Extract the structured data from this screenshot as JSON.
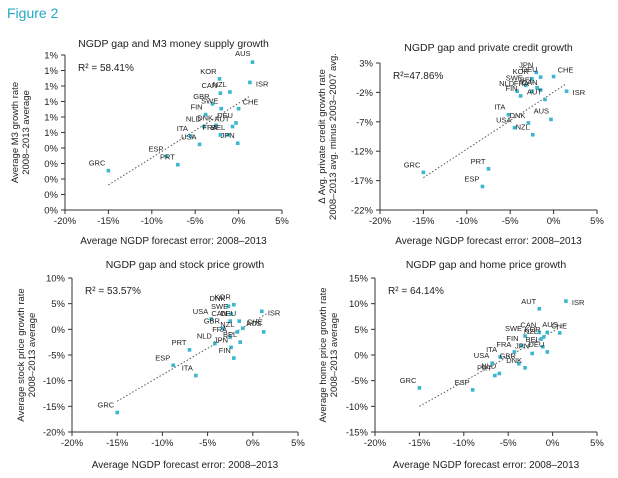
{
  "figure_label": "Figure 2",
  "colors": {
    "point": "#3ab7cf",
    "trend": "#555555",
    "axis": "#333333",
    "label": "#222222"
  },
  "chart_data": [
    {
      "type": "scatter",
      "title": "NGDP gap and M3 money supply growth",
      "xlabel": "Average NGDP forecast error: 2008–2013",
      "ylabel": [
        "Average M3 growth rate",
        "2008–2013 average"
      ],
      "annotation": "R² = 58.41%",
      "xlim": [
        -20,
        5
      ],
      "ylim": [
        0,
        1.3
      ],
      "x_ticks": [
        -20,
        -15,
        -10,
        -5,
        0,
        5
      ],
      "x_tick_labels": [
        "-20%",
        "-15%",
        "-10%",
        "-5%",
        "0%",
        "5%"
      ],
      "y_ticks": [
        0,
        0.13,
        0.26,
        0.39,
        0.52,
        0.65,
        0.78,
        0.91,
        1.04,
        1.17,
        1.3
      ],
      "y_tick_labels": [
        "0%",
        "0%",
        "0%",
        "0%",
        "0%",
        "1%",
        "1%",
        "1%",
        "1%",
        "1%",
        "1%"
      ],
      "trend": [
        [
          -15,
          0.21
        ],
        [
          1.4,
          0.96
        ]
      ],
      "points": [
        {
          "label": "GRC",
          "x": -15.0,
          "y": 0.33
        },
        {
          "label": "ESP",
          "x": -8.3,
          "y": 0.45
        },
        {
          "label": "PRT",
          "x": -7.0,
          "y": 0.38
        },
        {
          "label": "ITA",
          "x": -5.5,
          "y": 0.62
        },
        {
          "label": "USA",
          "x": -4.5,
          "y": 0.55
        },
        {
          "label": "NLD",
          "x": -4.0,
          "y": 0.7
        },
        {
          "label": "FIN",
          "x": -3.8,
          "y": 0.8
        },
        {
          "label": "GBR",
          "x": -3.0,
          "y": 0.89
        },
        {
          "label": "SWE",
          "x": -2.0,
          "y": 0.85
        },
        {
          "label": "DNK",
          "x": -2.6,
          "y": 0.71
        },
        {
          "label": "FRA",
          "x": -2.1,
          "y": 0.63
        },
        {
          "label": "BEL",
          "x": -1.2,
          "y": 0.63
        },
        {
          "label": "AUT",
          "x": -0.7,
          "y": 0.7
        },
        {
          "label": "DEU",
          "x": -0.3,
          "y": 0.73
        },
        {
          "label": "CHE",
          "x": 0.0,
          "y": 0.85
        },
        {
          "label": "JPN",
          "x": -0.1,
          "y": 0.56
        },
        {
          "label": "CAN",
          "x": -2.1,
          "y": 0.98
        },
        {
          "label": "NZL",
          "x": -1.0,
          "y": 0.99
        },
        {
          "label": "KOR",
          "x": -2.2,
          "y": 1.1
        },
        {
          "label": "ISR",
          "x": 1.3,
          "y": 1.07
        },
        {
          "label": "AUS",
          "x": 1.6,
          "y": 1.24
        }
      ]
    },
    {
      "type": "scatter",
      "title": "NGDP gap and private credit growth",
      "xlabel": "Average NGDP forecast error: 2008–2013",
      "ylabel": [
        "Δ Avg. private credit growth rate",
        "2008–2013 avg. minus 2003–2007 avg."
      ],
      "annotation": "R²=47.86%",
      "xlim": [
        -20,
        5
      ],
      "ylim": [
        -22,
        3
      ],
      "x_ticks": [
        -20,
        -15,
        -10,
        -5,
        0,
        5
      ],
      "x_tick_labels": [
        "-20%",
        "-15%",
        "-10%",
        "-5%",
        "0%",
        "5%"
      ],
      "y_ticks": [
        -22,
        -17,
        -12,
        -7,
        -2,
        3
      ],
      "y_tick_labels": [
        "-22%",
        "-17%",
        "-12%",
        "-7%",
        "-2%",
        "3%"
      ],
      "trend": [
        [
          -15,
          -16.5
        ],
        [
          1.5,
          -0.5
        ]
      ],
      "points": [
        {
          "label": "GRC",
          "x": -15.0,
          "y": -15.6
        },
        {
          "label": "ESP",
          "x": -8.2,
          "y": -18.0
        },
        {
          "label": "PRT",
          "x": -7.5,
          "y": -15.0
        },
        {
          "label": "ITA",
          "x": -5.2,
          "y": -5.8
        },
        {
          "label": "USA",
          "x": -4.5,
          "y": -8.0
        },
        {
          "label": "NLD",
          "x": -4.2,
          "y": -1.8
        },
        {
          "label": "FIN",
          "x": -3.8,
          "y": -2.6
        },
        {
          "label": "SWE",
          "x": -3.2,
          "y": -0.8
        },
        {
          "label": "KOR",
          "x": -2.5,
          "y": 0.3
        },
        {
          "label": "JPN",
          "x": -2.0,
          "y": 1.4
        },
        {
          "label": "DEU",
          "x": -1.5,
          "y": 0.6
        },
        {
          "label": "CHE",
          "x": 0.0,
          "y": 0.7
        },
        {
          "label": "BEL",
          "x": -1.9,
          "y": -1.2
        },
        {
          "label": "CAN",
          "x": -1.5,
          "y": -1.6
        },
        {
          "label": "FRA",
          "x": -2.5,
          "y": -1.8
        },
        {
          "label": "AUT",
          "x": -1.0,
          "y": -3.2
        },
        {
          "label": "DNK",
          "x": -2.9,
          "y": -7.2
        },
        {
          "label": "NZL",
          "x": -2.4,
          "y": -9.2
        },
        {
          "label": "AUS",
          "x": -0.3,
          "y": -6.6
        },
        {
          "label": "ISR",
          "x": 1.5,
          "y": -1.8
        }
      ]
    },
    {
      "type": "scatter",
      "title": "NGDP gap and stock price growth",
      "xlabel": "Average NGDP forecast error: 2008–2013",
      "ylabel": [
        "Average stock price growth rate",
        "2008–2013 average"
      ],
      "annotation": "R² = 53.57%",
      "xlim": [
        -20,
        5
      ],
      "ylim": [
        -20,
        10
      ],
      "x_ticks": [
        -20,
        -15,
        -10,
        -5,
        0,
        5
      ],
      "x_tick_labels": [
        "-20%",
        "-15%",
        "-10%",
        "-5%",
        "0%",
        "5%"
      ],
      "y_ticks": [
        -20,
        -15,
        -10,
        -5,
        0,
        5,
        10
      ],
      "y_tick_labels": [
        "-20%",
        "-15%",
        "-10%",
        "-5%",
        "0%",
        "5%",
        "10%"
      ],
      "trend": [
        [
          -15,
          -14
        ],
        [
          1.5,
          3
        ]
      ],
      "points": [
        {
          "label": "GRC",
          "x": -15.0,
          "y": -16.2
        },
        {
          "label": "ESP",
          "x": -8.8,
          "y": -7.0
        },
        {
          "label": "ITA",
          "x": -6.3,
          "y": -9.0
        },
        {
          "label": "PRT",
          "x": -7.0,
          "y": -4.0
        },
        {
          "label": "USA",
          "x": -4.6,
          "y": 2.0
        },
        {
          "label": "NLD",
          "x": -4.2,
          "y": -2.8
        },
        {
          "label": "DNK",
          "x": -2.7,
          "y": 4.5
        },
        {
          "label": "KOR",
          "x": -2.1,
          "y": 4.8
        },
        {
          "label": "SWE",
          "x": -2.4,
          "y": 3.0
        },
        {
          "label": "CAN",
          "x": -2.5,
          "y": 1.6
        },
        {
          "label": "GBR",
          "x": -3.3,
          "y": 0.2
        },
        {
          "label": "DEU",
          "x": -1.5,
          "y": 1.6
        },
        {
          "label": "CHE",
          "x": -1.1,
          "y": 0.2
        },
        {
          "label": "FRA",
          "x": -2.5,
          "y": -1.5
        },
        {
          "label": "NZL",
          "x": -1.7,
          "y": -0.5
        },
        {
          "label": "BEL",
          "x": -1.4,
          "y": -2.5
        },
        {
          "label": "JPN",
          "x": -2.4,
          "y": -3.5
        },
        {
          "label": "FIN",
          "x": -2.1,
          "y": -5.6
        },
        {
          "label": "ISR",
          "x": 1.0,
          "y": 3.5
        },
        {
          "label": "AUS",
          "x": 1.2,
          "y": -0.5
        }
      ]
    },
    {
      "type": "scatter",
      "title": "NGDP gap and home price growth",
      "xlabel": "Average NGDP forecast error: 2008–2013",
      "ylabel": [
        "Average home price growth rate",
        "2008–2013 average"
      ],
      "annotation": "R² = 64.14%",
      "xlim": [
        -20,
        5
      ],
      "ylim": [
        -15,
        15
      ],
      "x_ticks": [
        -20,
        -15,
        -10,
        -5,
        0,
        5
      ],
      "x_tick_labels": [
        "-20%",
        "-15%",
        "-10%",
        "-5%",
        "0%",
        "5%"
      ],
      "y_ticks": [
        -15,
        -10,
        -5,
        0,
        5,
        10,
        15
      ],
      "y_tick_labels": [
        "-15%",
        "-10%",
        "-5%",
        "0%",
        "5%",
        "10%",
        "15%"
      ],
      "trend": [
        [
          -15,
          -10
        ],
        [
          1.5,
          6
        ]
      ],
      "points": [
        {
          "label": "GRC",
          "x": -15.0,
          "y": -6.4
        },
        {
          "label": "ESP",
          "x": -9.0,
          "y": -6.8
        },
        {
          "label": "PRT",
          "x": -6.5,
          "y": -4.0
        },
        {
          "label": "NLD",
          "x": -6.0,
          "y": -3.6
        },
        {
          "label": "USA",
          "x": -6.8,
          "y": -1.6
        },
        {
          "label": "ITA",
          "x": -5.9,
          "y": -0.4
        },
        {
          "label": "GBR",
          "x": -3.8,
          "y": -1.7
        },
        {
          "label": "DNK",
          "x": -3.1,
          "y": -2.5
        },
        {
          "label": "FRA",
          "x": -4.3,
          "y": 0.6
        },
        {
          "label": "FIN",
          "x": -3.5,
          "y": 1.8
        },
        {
          "label": "SWE",
          "x": -3.1,
          "y": 3.7
        },
        {
          "label": "CAN",
          "x": -1.5,
          "y": 4.4
        },
        {
          "label": "CHE",
          "x": -0.6,
          "y": 4.4
        },
        {
          "label": "KOR",
          "x": -1.0,
          "y": 3.5
        },
        {
          "label": "NZL",
          "x": -1.3,
          "y": 3.1
        },
        {
          "label": "BEL",
          "x": -1.1,
          "y": 1.6
        },
        {
          "label": "DEU",
          "x": -0.6,
          "y": 0.6
        },
        {
          "label": "JPN",
          "x": -2.3,
          "y": 0.3
        },
        {
          "label": "AUS",
          "x": 0.8,
          "y": 4.3
        },
        {
          "label": "AUT",
          "x": -1.5,
          "y": 9.0
        },
        {
          "label": "ISR",
          "x": 1.5,
          "y": 10.5
        }
      ]
    }
  ]
}
